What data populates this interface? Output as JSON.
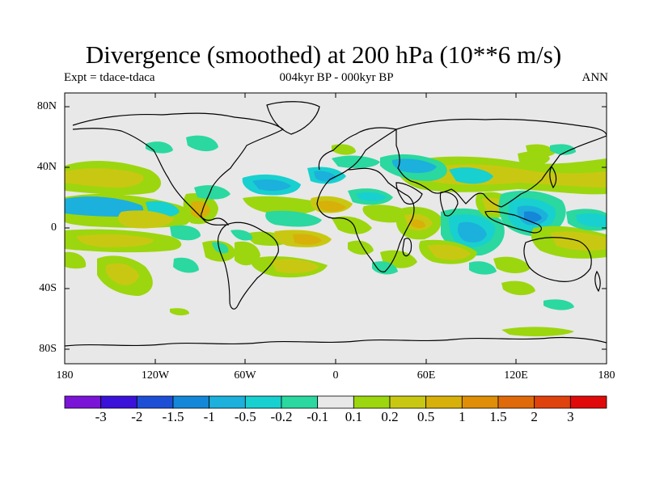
{
  "title": "Divergence (smoothed) at 200 hPa (10**6 m/s)",
  "left_subtitle": "Expt = tdace-tdaca",
  "center_subtitle": "004kyr BP - 000kyr BP",
  "right_subtitle": "ANN",
  "lat_labels": [
    "80N",
    "40N",
    "0",
    "40S",
    "80S"
  ],
  "lon_labels": [
    "180",
    "120W",
    "60W",
    "0",
    "60E",
    "120E",
    "180"
  ],
  "colorbar": {
    "colors": [
      "#7a14d6",
      "#3b12d9",
      "#1d4fd6",
      "#1487d8",
      "#1cb0dc",
      "#18d0cf",
      "#2ad8a0",
      "#e8e8e8",
      "#9cd60e",
      "#c8c812",
      "#d8b00a",
      "#e08e08",
      "#e06a0a",
      "#e0420e",
      "#e00a0a"
    ],
    "labels": [
      "-3",
      "-2",
      "-1.5",
      "-1",
      "-0.5",
      "-0.2",
      "-0.1",
      "0.1",
      "0.2",
      "0.5",
      "1",
      "1.5",
      "2",
      "3"
    ]
  },
  "field_colors": {
    "background": "#e8e8e8",
    "pos_weak": "#9cd60e",
    "pos_mid": "#c8c812",
    "pos_strong": "#d8b00a",
    "pos_max": "#e08e08",
    "neg_weak": "#2ad8a0",
    "neg_mid": "#18d0cf",
    "neg_strong": "#1cb0dc",
    "neg_max": "#1487d8"
  }
}
